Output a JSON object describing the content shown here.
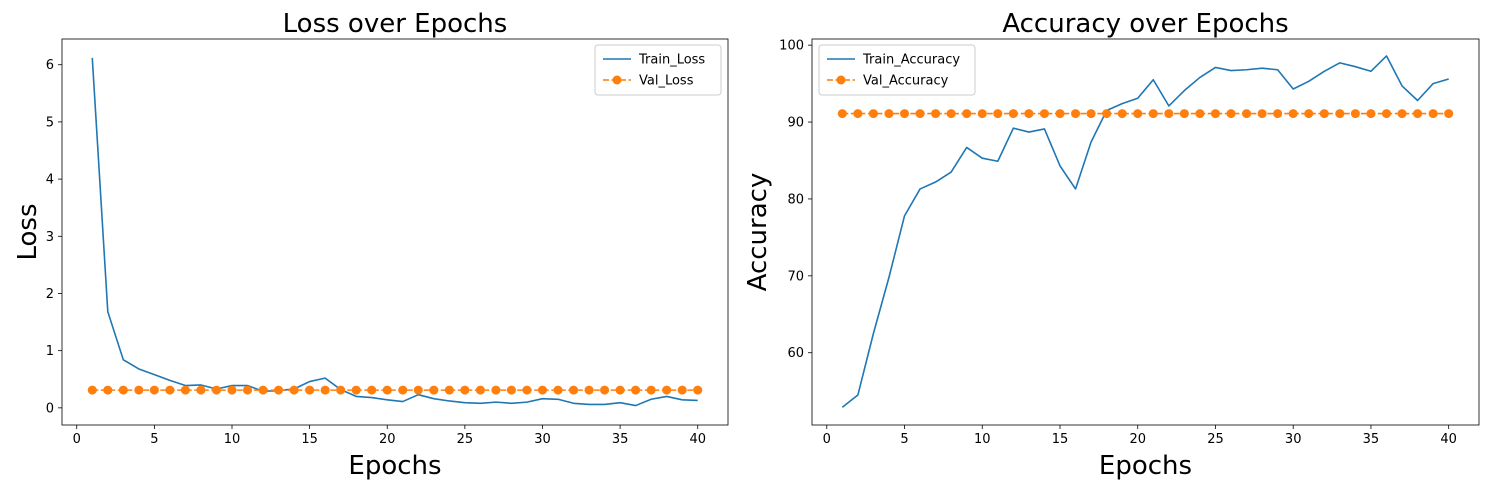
{
  "chart_data": [
    {
      "type": "line",
      "title": "Loss over Epochs",
      "xlabel": "Epochs",
      "ylabel": "Loss",
      "xlim": [
        -0.95,
        41.95
      ],
      "ylim": [
        -0.3,
        6.45
      ],
      "xticks": [
        0,
        5,
        10,
        15,
        20,
        25,
        30,
        35,
        40
      ],
      "yticks": [
        0,
        1,
        2,
        3,
        4,
        5,
        6
      ],
      "legend": "top-right",
      "x": [
        1,
        2,
        3,
        4,
        5,
        6,
        7,
        8,
        9,
        10,
        11,
        12,
        13,
        14,
        15,
        16,
        17,
        18,
        19,
        20,
        21,
        22,
        23,
        24,
        25,
        26,
        27,
        28,
        29,
        30,
        31,
        32,
        33,
        34,
        35,
        36,
        37,
        38,
        39,
        40
      ],
      "series": [
        {
          "name": "Train_Loss",
          "color": "#1f77b4",
          "style": "solid",
          "marker": "none",
          "values": [
            6.12,
            1.68,
            0.84,
            0.68,
            0.58,
            0.48,
            0.39,
            0.4,
            0.33,
            0.39,
            0.39,
            0.29,
            0.3,
            0.33,
            0.46,
            0.52,
            0.32,
            0.2,
            0.18,
            0.14,
            0.11,
            0.23,
            0.16,
            0.12,
            0.09,
            0.08,
            0.1,
            0.08,
            0.1,
            0.16,
            0.15,
            0.08,
            0.06,
            0.06,
            0.09,
            0.04,
            0.15,
            0.2,
            0.14,
            0.13
          ]
        },
        {
          "name": "Val_Loss",
          "color": "#ff7f0e",
          "style": "dashed",
          "marker": "circle",
          "values": [
            0.31,
            0.31,
            0.31,
            0.31,
            0.31,
            0.31,
            0.31,
            0.31,
            0.31,
            0.31,
            0.31,
            0.31,
            0.31,
            0.31,
            0.31,
            0.31,
            0.31,
            0.31,
            0.31,
            0.31,
            0.31,
            0.31,
            0.31,
            0.31,
            0.31,
            0.31,
            0.31,
            0.31,
            0.31,
            0.31,
            0.31,
            0.31,
            0.31,
            0.31,
            0.31,
            0.31,
            0.31,
            0.31,
            0.31,
            0.31
          ]
        }
      ]
    },
    {
      "type": "line",
      "title": "Accuracy over Epochs",
      "xlabel": "Epochs",
      "ylabel": "Accuracy",
      "xlim": [
        -0.95,
        41.95
      ],
      "ylim": [
        50.6,
        100.8
      ],
      "xticks": [
        0,
        5,
        10,
        15,
        20,
        25,
        30,
        35,
        40
      ],
      "yticks": [
        60,
        70,
        80,
        90,
        100
      ],
      "legend": "top-left",
      "x": [
        1,
        2,
        3,
        4,
        5,
        6,
        7,
        8,
        9,
        10,
        11,
        12,
        13,
        14,
        15,
        16,
        17,
        18,
        19,
        20,
        21,
        22,
        23,
        24,
        25,
        26,
        27,
        28,
        29,
        30,
        31,
        32,
        33,
        34,
        35,
        36,
        37,
        38,
        39,
        40
      ],
      "series": [
        {
          "name": "Train_Accuracy",
          "color": "#1f77b4",
          "style": "solid",
          "marker": "none",
          "values": [
            52.9,
            54.5,
            62.5,
            69.8,
            77.8,
            81.3,
            82.2,
            83.5,
            86.7,
            85.3,
            84.9,
            89.2,
            88.7,
            89.1,
            84.3,
            81.3,
            87.4,
            91.5,
            92.4,
            93.1,
            95.5,
            92.1,
            94.1,
            95.8,
            97.1,
            96.7,
            96.8,
            97.0,
            96.8,
            94.3,
            95.3,
            96.6,
            97.7,
            97.2,
            96.6,
            98.6,
            94.7,
            92.8,
            95.0,
            95.6
          ]
        },
        {
          "name": "Val_Accuracy",
          "color": "#ff7f0e",
          "style": "dashed",
          "marker": "circle",
          "values": [
            91.1,
            91.1,
            91.1,
            91.1,
            91.1,
            91.1,
            91.1,
            91.1,
            91.1,
            91.1,
            91.1,
            91.1,
            91.1,
            91.1,
            91.1,
            91.1,
            91.1,
            91.1,
            91.1,
            91.1,
            91.1,
            91.1,
            91.1,
            91.1,
            91.1,
            91.1,
            91.1,
            91.1,
            91.1,
            91.1,
            91.1,
            91.1,
            91.1,
            91.1,
            91.1,
            91.1,
            91.1,
            91.1,
            91.1,
            91.1
          ]
        }
      ]
    }
  ]
}
